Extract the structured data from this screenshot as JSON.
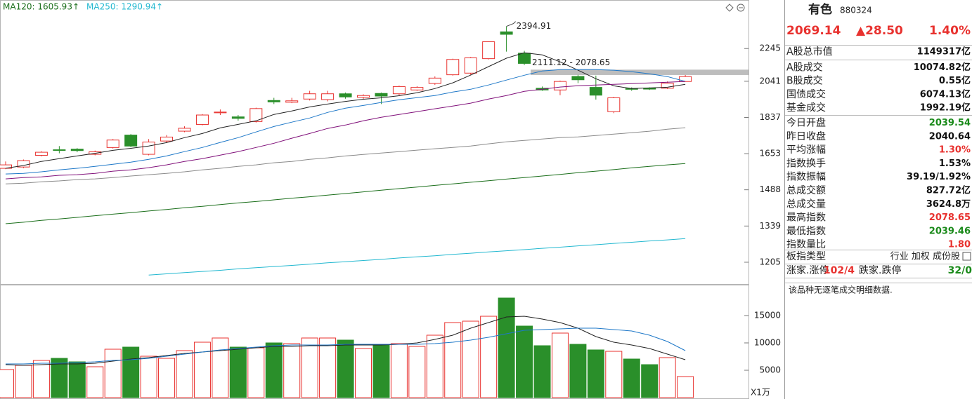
{
  "chart_data": [
    {
      "type": "candlestick",
      "log_scale": true,
      "ylim": [
        1131,
        2586
      ],
      "yticks": [
        1205,
        1339,
        1488,
        1653,
        1837,
        2041,
        2245
      ],
      "up_color": "#e8322f",
      "down_color": "#2a8f2a",
      "open": [
        1584,
        1590,
        1645,
        1672,
        1675,
        1650,
        1683,
        1745,
        1650,
        1715,
        1765,
        1800,
        1862,
        1840,
        1815,
        1930,
        1920,
        1938,
        1935,
        1968,
        1948,
        1970,
        1968,
        1990,
        2028,
        2080,
        2090,
        2180,
        2357,
        2215,
        2000,
        1990,
        2070,
        2005,
        1868,
        1998,
        2000,
        2000,
        2039.54
      ],
      "high": [
        1616,
        1625,
        1665,
        1690,
        1680,
        1668,
        1725,
        1750,
        1725,
        1745,
        1790,
        1855,
        1880,
        1850,
        1890,
        1945,
        1945,
        1985,
        1985,
        1975,
        1965,
        1975,
        2015,
        2012,
        2070,
        2180,
        2190,
        2292,
        2394.91,
        2230,
        2010,
        2045,
        2080,
        2075,
        1950,
        2005,
        2005,
        2040,
        2078.65
      ],
      "low": [
        1580,
        1585,
        1640,
        1655,
        1660,
        1645,
        1678,
        1685,
        1645,
        1705,
        1760,
        1795,
        1850,
        1820,
        1810,
        1910,
        1915,
        1930,
        1925,
        1940,
        1935,
        1910,
        1960,
        1985,
        2020,
        2075,
        2080,
        2175,
        2225,
        2140,
        1985,
        1960,
        2030,
        1935,
        1860,
        1985,
        1990,
        1995,
        2039.46
      ],
      "close": [
        1600,
        1620,
        1660,
        1670,
        1668,
        1662,
        1720,
        1690,
        1710,
        1735,
        1780,
        1850,
        1866,
        1832,
        1885,
        1922,
        1928,
        1968,
        1968,
        1950,
        1958,
        1955,
        2010,
        2005,
        2060,
        2175,
        2185,
        2290,
        2340,
        2150,
        1990,
        2040,
        2050,
        1960,
        1945,
        1995,
        1995,
        2030,
        2069.14
      ],
      "high_label_index": 28,
      "band": {
        "label": "2111.12 - 2078.65",
        "values": [
          2111.12,
          2078.65
        ],
        "color": "#bdbdbd"
      },
      "series": [
        {
          "color": "#222222",
          "values": [
            1584,
            1597,
            1616,
            1629,
            1642,
            1655,
            1669,
            1679,
            1690,
            1707,
            1732,
            1753,
            1782,
            1800,
            1819,
            1853,
            1872,
            1894,
            1910,
            1925,
            1937,
            1945,
            1957,
            1974,
            1998,
            2032,
            2078,
            2130,
            2183,
            2218,
            2204,
            2160,
            2108,
            2056,
            2014,
            1998,
            2002,
            2006,
            2023
          ]
        },
        {
          "color": "#1e78c8",
          "values": [
            1558,
            1561,
            1568,
            1577,
            1584,
            1593,
            1603,
            1613,
            1626,
            1642,
            1663,
            1683,
            1708,
            1732,
            1761,
            1789,
            1812,
            1834,
            1864,
            1887,
            1902,
            1919,
            1934,
            1946,
            1958,
            1978,
            1994,
            2019,
            2048,
            2077,
            2103,
            2112,
            2112,
            2112,
            2108,
            2099,
            2086,
            2069,
            2040
          ]
        },
        {
          "color": "#80107a",
          "values": [
            1536,
            1542,
            1545,
            1552,
            1555,
            1561,
            1571,
            1577,
            1587,
            1600,
            1616,
            1629,
            1646,
            1663,
            1683,
            1704,
            1729,
            1753,
            1779,
            1797,
            1819,
            1838,
            1853,
            1868,
            1884,
            1899,
            1915,
            1938,
            1958,
            1982,
            1994,
            2007,
            2015,
            2019,
            2023,
            2027,
            2031,
            2035,
            2040
          ]
        },
        {
          "color": "#8a8a8a",
          "values": [
            1514,
            1517,
            1523,
            1527,
            1533,
            1536,
            1542,
            1549,
            1555,
            1561,
            1568,
            1577,
            1584,
            1593,
            1600,
            1610,
            1616,
            1626,
            1633,
            1642,
            1649,
            1656,
            1663,
            1670,
            1677,
            1683,
            1690,
            1701,
            1711,
            1718,
            1725,
            1732,
            1736,
            1743,
            1750,
            1757,
            1765,
            1775,
            1783
          ]
        },
        {
          "name": "MA120: 1605.93↑",
          "color": "#1a6e1a",
          "values": [
            1348,
            1354,
            1361,
            1367,
            1373,
            1380,
            1386,
            1392,
            1399,
            1405,
            1412,
            1418,
            1425,
            1432,
            1438,
            1445,
            1452,
            1458,
            1465,
            1472,
            1479,
            1486,
            1493,
            1500,
            1507,
            1514,
            1521,
            1528,
            1535,
            1542,
            1549,
            1556,
            1564,
            1571,
            1578,
            1586,
            1593,
            1600,
            1605.93
          ]
        },
        {
          "name": "MA250: 1290.94↑",
          "color": "#22b8d0",
          "values": [
            null,
            null,
            null,
            null,
            null,
            null,
            null,
            null,
            1161,
            1165,
            1169,
            1173,
            1177,
            1182,
            1186,
            1190,
            1194,
            1198,
            1203,
            1207,
            1211,
            1215,
            1220,
            1224,
            1228,
            1233,
            1237,
            1242,
            1246,
            1250,
            1255,
            1259,
            1264,
            1268,
            1273,
            1277,
            1282,
            1286,
            1290.94
          ]
        }
      ]
    },
    {
      "type": "bar",
      "ylim": [
        0,
        20513
      ],
      "yticks": [
        5000,
        10000,
        15000
      ],
      "unit_label": "X1万",
      "values": [
        5128,
        5897,
        6795,
        7179,
        6538,
        5641,
        8846,
        9231,
        7564,
        7179,
        8590,
        10128,
        10897,
        9231,
        9103,
        10000,
        9872,
        10897,
        10897,
        10513,
        8974,
        9744,
        9872,
        9359,
        11410,
        13718,
        13974,
        14872,
        18205,
        13077,
        9487,
        11795,
        9744,
        8718,
        8462,
        7051,
        6026,
        7308,
        3846
      ],
      "series": [
        {
          "color": "#222222",
          "values": [
            6030,
            5900,
            6030,
            6150,
            6150,
            6280,
            6670,
            7050,
            7310,
            7690,
            8080,
            8330,
            8590,
            8850,
            9100,
            9360,
            9360,
            9490,
            9490,
            9620,
            9620,
            9620,
            9740,
            10000,
            10640,
            11410,
            12690,
            13720,
            14740,
            14870,
            14360,
            13720,
            12690,
            11150,
            10130,
            9620,
            8970,
            7950,
            6920
          ]
        },
        {
          "color": "#1e78c8",
          "values": [
            6150,
            6150,
            6280,
            6280,
            6410,
            6540,
            6790,
            6920,
            7180,
            7560,
            7950,
            8330,
            8720,
            8970,
            9230,
            9490,
            9620,
            9620,
            9620,
            9740,
            9740,
            9740,
            9740,
            9740,
            9870,
            10130,
            10510,
            11030,
            11670,
            12310,
            12440,
            12560,
            12690,
            12690,
            12440,
            12180,
            11410,
            10260,
            8590
          ]
        }
      ]
    }
  ],
  "panel": {
    "name": "有色",
    "code": "880324",
    "price": "2069.14",
    "change": "▲28.50",
    "pct": "1.40%",
    "price_color": "#e8322f",
    "rows": [
      {
        "label": "A股总市值",
        "value": "1149317亿",
        "color": "#111111"
      },
      {
        "label": "A股成交",
        "value": "10074.82亿",
        "color": "#111111"
      },
      {
        "label": "B股成交",
        "value": "0.55亿",
        "color": "#111111"
      },
      {
        "label": "国债成交",
        "value": "6074.13亿",
        "color": "#111111"
      },
      {
        "label": "基金成交",
        "value": "1992.19亿",
        "color": "#111111"
      },
      {
        "label": "今日开盘",
        "value": "2039.54",
        "color": "#1a8a1a"
      },
      {
        "label": "昨日收盘",
        "value": "2040.64",
        "color": "#111111"
      },
      {
        "label": "平均涨幅",
        "value": "1.30%",
        "color": "#e8322f"
      },
      {
        "label": "指数换手",
        "value": "1.53%",
        "color": "#111111"
      },
      {
        "label": "指数振幅",
        "value": "39.19/1.92%",
        "color": "#111111"
      },
      {
        "label": "总成交额",
        "value": "827.72亿",
        "color": "#111111"
      },
      {
        "label": "总成交量",
        "value": "3624.8万",
        "color": "#111111"
      },
      {
        "label": "最高指数",
        "value": "2078.65",
        "color": "#e8322f"
      },
      {
        "label": "最低指数",
        "value": "2039.46",
        "color": "#1a8a1a"
      },
      {
        "label": "指数量比",
        "value": "1.80",
        "color": "#e8322f"
      }
    ],
    "type_label": "板指类型",
    "type_value": "行业 加权 成份股",
    "breadth": {
      "up_label": "涨家.涨停",
      "up_value": "102/4",
      "down_label": "跌家.跌停",
      "down_value": "32/0"
    },
    "note": "该品种无逐笔成交明细数据."
  }
}
